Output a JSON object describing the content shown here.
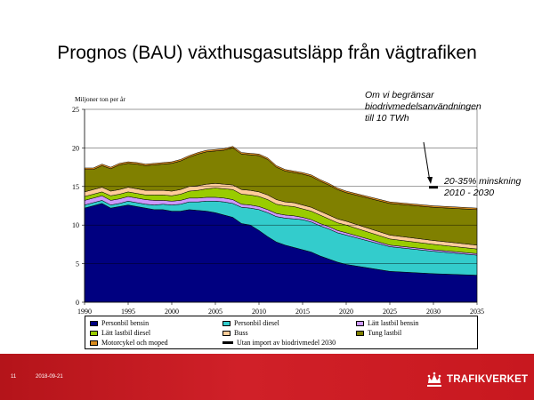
{
  "slide": {
    "title": "Prognos (BAU) växthusgasutsläpp från vägtrafiken",
    "annotation_1": [
      "Om vi begränsar",
      "biodrivmedelsanvändningen",
      "till 10 TWh"
    ],
    "annotation_2": [
      "20-35% minskning",
      "2010 - 2030"
    ]
  },
  "footer": {
    "page_number": "11",
    "date": "2018-09-21",
    "logo_text": "TRAFIKVERKET"
  },
  "chart_data": {
    "type": "area",
    "stacked": true,
    "title": "",
    "ylabel": "Miljoner ton per år",
    "xlabel": "",
    "ylim": [
      0,
      25
    ],
    "xlim": [
      1990,
      2035
    ],
    "y_ticks": [
      0,
      5,
      10,
      15,
      20,
      25
    ],
    "x_ticks": [
      1990,
      1995,
      2000,
      2005,
      2010,
      2015,
      2020,
      2025,
      2030,
      2035
    ],
    "grid": "horizontal",
    "legend_position": "bottom",
    "x": [
      1990,
      1991,
      1992,
      1993,
      1994,
      1995,
      1996,
      1997,
      1998,
      1999,
      2000,
      2001,
      2002,
      2003,
      2004,
      2005,
      2006,
      2007,
      2008,
      2009,
      2010,
      2011,
      2012,
      2013,
      2014,
      2015,
      2016,
      2017,
      2018,
      2019,
      2020,
      2025,
      2030,
      2035
    ],
    "series": [
      {
        "name": "Personbil bensin",
        "color": "#000080",
        "values": [
          12.2,
          12.5,
          12.8,
          12.2,
          12.4,
          12.6,
          12.4,
          12.2,
          12.0,
          12.0,
          11.8,
          11.8,
          12.0,
          11.9,
          11.8,
          11.6,
          11.3,
          11.0,
          10.2,
          10.0,
          9.3,
          8.5,
          7.8,
          7.4,
          7.1,
          6.8,
          6.5,
          6.0,
          5.6,
          5.2,
          4.9,
          4.0,
          3.7,
          3.5
        ]
      },
      {
        "name": "Personbil diesel",
        "color": "#33CCCC",
        "values": [
          0.4,
          0.4,
          0.4,
          0.4,
          0.4,
          0.5,
          0.5,
          0.5,
          0.6,
          0.7,
          0.8,
          0.9,
          1.0,
          1.1,
          1.3,
          1.5,
          1.7,
          1.8,
          2.1,
          2.2,
          2.7,
          3.1,
          3.3,
          3.5,
          3.7,
          3.9,
          3.9,
          3.9,
          3.9,
          3.8,
          3.8,
          3.2,
          2.9,
          2.6
        ]
      },
      {
        "name": "Lätt lastbil bensin",
        "color": "#CC99FF",
        "values": [
          0.6,
          0.6,
          0.6,
          0.6,
          0.6,
          0.6,
          0.6,
          0.6,
          0.6,
          0.5,
          0.5,
          0.5,
          0.5,
          0.5,
          0.5,
          0.5,
          0.5,
          0.5,
          0.4,
          0.4,
          0.4,
          0.4,
          0.4,
          0.4,
          0.4,
          0.3,
          0.3,
          0.3,
          0.3,
          0.3,
          0.3,
          0.2,
          0.2,
          0.2
        ]
      },
      {
        "name": "Lätt lastbil diesel",
        "color": "#99CC00",
        "values": [
          0.5,
          0.5,
          0.5,
          0.6,
          0.6,
          0.6,
          0.6,
          0.6,
          0.7,
          0.7,
          0.7,
          0.8,
          0.9,
          1.0,
          1.1,
          1.2,
          1.2,
          1.3,
          1.3,
          1.3,
          1.3,
          1.3,
          1.2,
          1.2,
          1.2,
          1.1,
          1.1,
          1.1,
          1.0,
          1.0,
          1.0,
          0.8,
          0.7,
          0.6
        ]
      },
      {
        "name": "Buss",
        "color": "#FFCC99",
        "values": [
          0.6,
          0.6,
          0.6,
          0.6,
          0.6,
          0.6,
          0.6,
          0.6,
          0.6,
          0.6,
          0.6,
          0.6,
          0.6,
          0.6,
          0.6,
          0.6,
          0.6,
          0.6,
          0.6,
          0.6,
          0.6,
          0.6,
          0.6,
          0.5,
          0.5,
          0.5,
          0.5,
          0.5,
          0.5,
          0.5,
          0.5,
          0.5,
          0.5,
          0.5
        ]
      },
      {
        "name": "Tung lastbil",
        "color": "#808000",
        "values": [
          2.9,
          2.6,
          2.8,
          2.9,
          3.2,
          3.1,
          3.2,
          3.2,
          3.3,
          3.4,
          3.6,
          3.7,
          3.8,
          4.1,
          4.2,
          4.2,
          4.4,
          4.8,
          4.6,
          4.6,
          4.7,
          4.6,
          4.2,
          4.0,
          3.9,
          4.0,
          4.0,
          3.9,
          3.9,
          3.8,
          3.7,
          4.1,
          4.3,
          4.6
        ]
      },
      {
        "name": "Motorcykel och moped",
        "color": "#D98C1F",
        "values": [
          0.2,
          0.2,
          0.2,
          0.2,
          0.2,
          0.2,
          0.2,
          0.2,
          0.2,
          0.2,
          0.2,
          0.2,
          0.2,
          0.2,
          0.2,
          0.2,
          0.2,
          0.2,
          0.2,
          0.2,
          0.2,
          0.2,
          0.2,
          0.2,
          0.2,
          0.2,
          0.2,
          0.2,
          0.2,
          0.2,
          0.2,
          0.2,
          0.2,
          0.2
        ]
      }
    ],
    "reference_marker": {
      "name": "Utan import av biodrivmedel 2030",
      "x": 2030,
      "y": 14.9,
      "color": "#000000"
    }
  }
}
